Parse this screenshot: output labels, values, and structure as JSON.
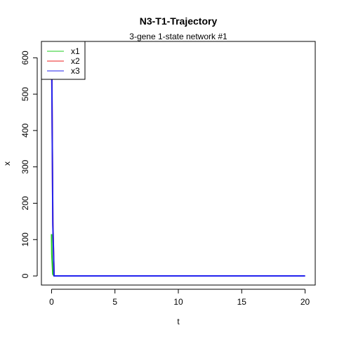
{
  "chart_data": {
    "type": "line",
    "title": "N3-T1-Trajectory",
    "subtitle": "3-gene 1-state network #1",
    "xlabel": "t",
    "ylabel": "x",
    "xlim": [
      -0.8,
      20.8
    ],
    "ylim": [
      -25,
      645
    ],
    "xticks": [
      0,
      5,
      10,
      15,
      20
    ],
    "yticks": [
      0,
      100,
      200,
      300,
      400,
      500,
      600
    ],
    "legend_position": "top-left",
    "series": [
      {
        "name": "x1",
        "color": "#22cc22",
        "x": [
          0,
          0.02,
          0.1,
          0.2,
          20
        ],
        "y": [
          115,
          60,
          5,
          0,
          0
        ]
      },
      {
        "name": "x2",
        "color": "#ee2222",
        "x": [
          0,
          0.02,
          0.1,
          0.2,
          20
        ],
        "y": [
          620,
          560,
          150,
          0,
          0
        ]
      },
      {
        "name": "x3",
        "color": "#2222ee",
        "x": [
          0,
          0.02,
          0.1,
          0.2,
          20
        ],
        "y": [
          610,
          550,
          140,
          0,
          0
        ]
      }
    ]
  }
}
